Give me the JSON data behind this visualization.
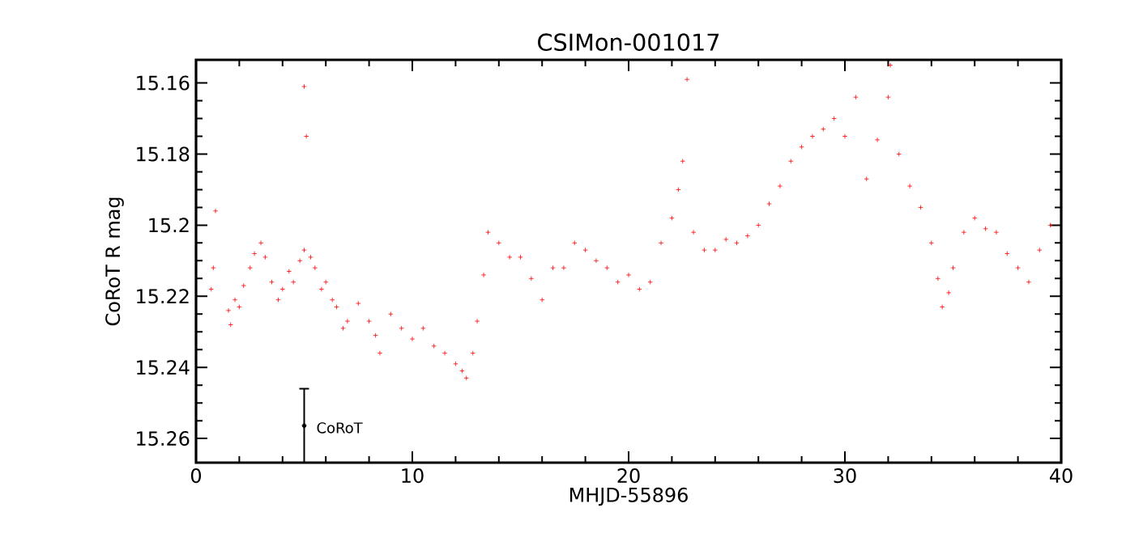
{
  "chart_data": {
    "type": "scatter",
    "title": "CSIMon-001017",
    "xlabel": "MHJD-55896",
    "ylabel": "CoRoT R mag",
    "xlim": [
      0,
      40
    ],
    "xticks": [
      0,
      10,
      20,
      30,
      40
    ],
    "ylim": [
      15.2668,
      15.1535
    ],
    "yticks": [
      15.16,
      15.18,
      15.2,
      15.22,
      15.24,
      15.26
    ],
    "annotations": [
      {
        "text": "CoRoT",
        "x": 5.3,
        "y": 15.257
      }
    ],
    "series": [
      {
        "color": "#ff0000",
        "marker": "cross",
        "x": [
          0.7,
          0.8,
          0.9,
          1.5,
          1.6,
          1.8,
          2.0,
          2.2,
          2.5,
          2.7,
          3.0,
          3.2,
          3.5,
          3.8,
          4.0,
          4.3,
          4.5,
          4.8,
          5.0,
          5.0,
          5.1,
          5.3,
          5.5,
          5.8,
          6.0,
          6.3,
          6.5,
          6.8,
          7.0,
          7.5,
          8.0,
          8.3,
          8.5,
          9.0,
          9.5,
          10.0,
          10.5,
          11.0,
          11.5,
          12.0,
          12.3,
          12.5,
          12.8,
          13.0,
          13.3,
          13.5,
          14.0,
          14.5,
          15.0,
          15.5,
          16.0,
          16.5,
          17.0,
          17.5,
          18.0,
          18.5,
          19.0,
          19.5,
          20.0,
          20.5,
          21.0,
          21.5,
          22.0,
          22.3,
          22.5,
          22.7,
          23.0,
          23.5,
          24.0,
          24.5,
          25.0,
          25.5,
          26.0,
          26.5,
          27.0,
          27.5,
          28.0,
          28.5,
          29.0,
          29.5,
          30.0,
          30.5,
          31.0,
          31.5,
          32.0,
          32.1,
          32.5,
          33.0,
          33.5,
          34.0,
          34.3,
          34.5,
          34.8,
          35.0,
          35.5,
          36.0,
          36.5,
          37.0,
          37.5,
          38.0,
          38.5,
          39.0,
          39.5
        ],
        "values": [
          15.218,
          15.212,
          15.196,
          15.224,
          15.228,
          15.221,
          15.223,
          15.217,
          15.212,
          15.208,
          15.205,
          15.209,
          15.216,
          15.221,
          15.218,
          15.213,
          15.216,
          15.21,
          15.207,
          15.161,
          15.175,
          15.209,
          15.212,
          15.218,
          15.216,
          15.221,
          15.223,
          15.229,
          15.227,
          15.222,
          15.227,
          15.231,
          15.236,
          15.225,
          15.229,
          15.232,
          15.229,
          15.234,
          15.236,
          15.239,
          15.241,
          15.243,
          15.236,
          15.227,
          15.214,
          15.202,
          15.205,
          15.209,
          15.209,
          15.215,
          15.221,
          15.212,
          15.212,
          15.205,
          15.207,
          15.21,
          15.212,
          15.216,
          15.214,
          15.218,
          15.216,
          15.205,
          15.198,
          15.19,
          15.182,
          15.159,
          15.202,
          15.207,
          15.207,
          15.204,
          15.205,
          15.203,
          15.2,
          15.194,
          15.189,
          15.182,
          15.178,
          15.175,
          15.173,
          15.17,
          15.175,
          15.164,
          15.187,
          15.176,
          15.164,
          15.155,
          15.18,
          15.189,
          15.195,
          15.205,
          15.215,
          15.223,
          15.219,
          15.212,
          15.202,
          15.198,
          15.201,
          15.202,
          15.208,
          15.212,
          15.216,
          15.207,
          15.2
        ]
      },
      {
        "color": "#000000",
        "marker": "circle",
        "x": [
          5.0
        ],
        "values": [
          15.2564
        ],
        "errors": [
          0.0104
        ]
      }
    ]
  }
}
